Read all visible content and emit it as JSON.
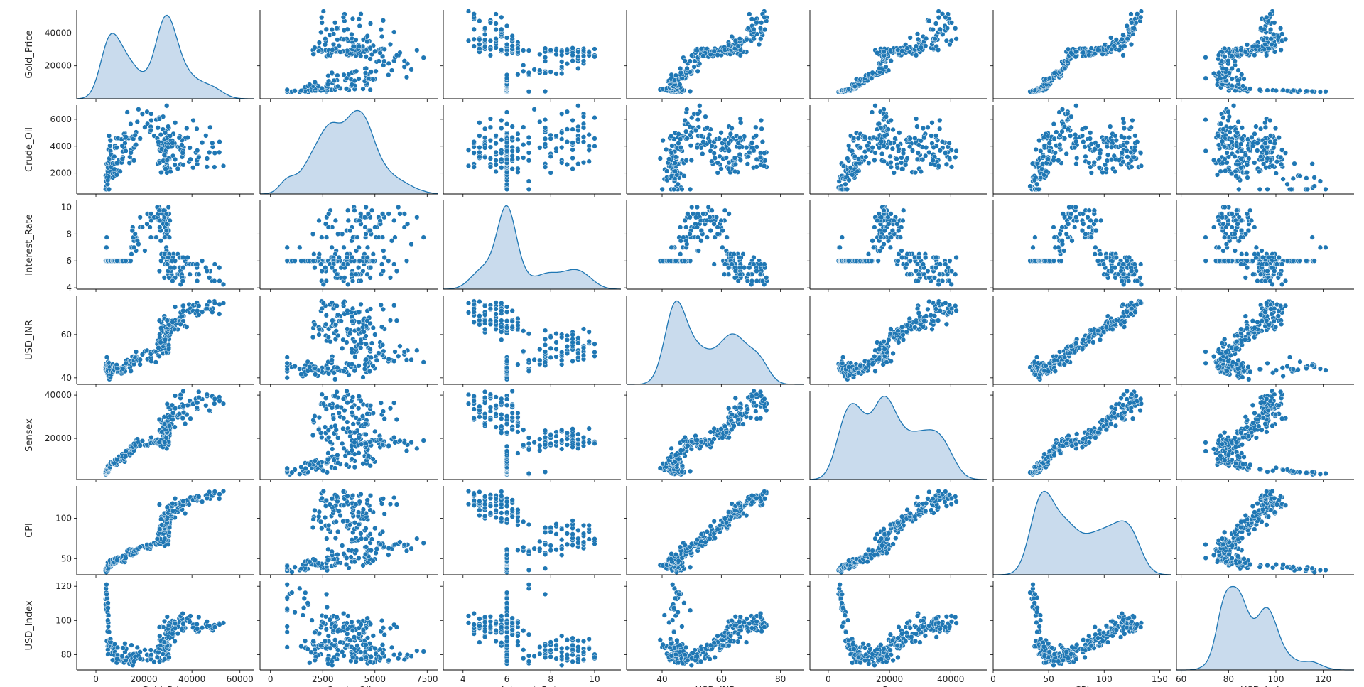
{
  "chart_data": {
    "type": "scatter",
    "kind": "pairplot",
    "diag_kind": "kde",
    "variables": [
      "Gold_Price",
      "Crude_Oil",
      "Interest_Rate",
      "USD_INR",
      "Sensex",
      "CPI",
      "USD_Index"
    ],
    "axes": {
      "Gold_Price": {
        "range": [
          -8000,
          66000
        ],
        "ticks": [
          0,
          20000,
          40000,
          60000
        ],
        "y_range": [
          0,
          54000
        ],
        "y_ticks": [
          20000,
          40000
        ]
      },
      "Crude_Oil": {
        "range": [
          -500,
          8000
        ],
        "ticks": [
          0,
          2500,
          5000,
          7500
        ],
        "y_range": [
          450,
          7050
        ],
        "y_ticks": [
          2000,
          4000,
          6000
        ]
      },
      "Interest_Rate": {
        "range": [
          3.1,
          11.2
        ],
        "ticks": [
          4,
          6,
          8,
          10
        ],
        "y_range": [
          3.9,
          10.5
        ],
        "y_ticks": [
          4,
          6,
          8,
          10
        ]
      },
      "USD_INR": {
        "range": [
          28,
          88
        ],
        "ticks": [
          40,
          60,
          80
        ],
        "y_range": [
          37,
          78
        ],
        "y_ticks": [
          40,
          60
        ]
      },
      "Sensex": {
        "range": [
          -6000,
          52000
        ],
        "ticks": [
          0,
          20000,
          40000
        ],
        "y_range": [
          1000,
          42000
        ],
        "y_ticks": [
          20000,
          40000
        ]
      },
      "CPI": {
        "range": [
          0,
          160
        ],
        "ticks": [
          0,
          50,
          100,
          150
        ],
        "y_range": [
          30,
          140
        ],
        "y_ticks": [
          50,
          100
        ]
      },
      "USD_Index": {
        "range": [
          58,
          133
        ],
        "ticks": [
          60,
          80,
          100,
          120
        ],
        "y_range": [
          71,
          123
        ],
        "y_ticks": [
          80,
          100,
          120
        ]
      }
    },
    "legend": "none",
    "grid": false,
    "point_color": "#1f77b4",
    "kde_fill": "#c6d9ec",
    "kde_line": "#1f77b4",
    "n_points": 240
  }
}
